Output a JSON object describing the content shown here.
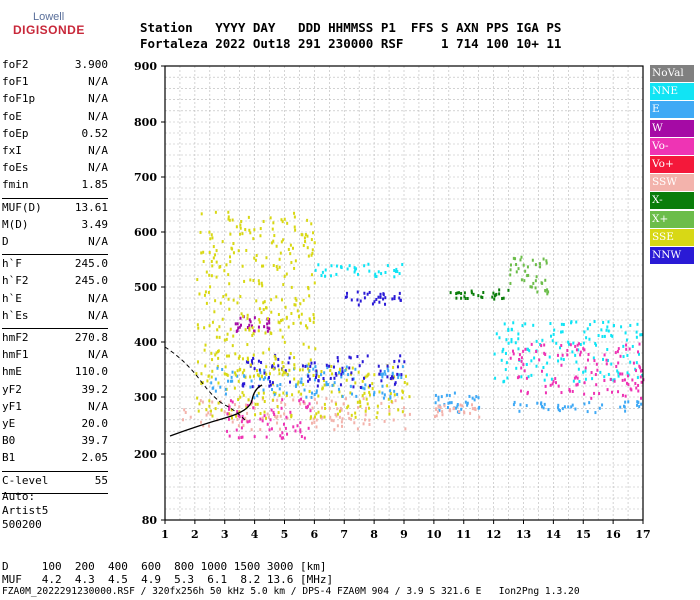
{
  "logo": {
    "top": "Lowell",
    "bottom": "DIGISONDE"
  },
  "header": {
    "line1": "Station   YYYY DAY   DDD HHMMSS P1  FFS S AXN PPS IGA PS",
    "line2": "Fortaleza 2022 Out18 291 230000 RSF     1 714 100 10+ 11"
  },
  "params": [
    [
      {
        "k": "foF2",
        "v": "3.900"
      },
      {
        "k": "foF1",
        "v": "N/A"
      },
      {
        "k": "foF1p",
        "v": "N/A"
      },
      {
        "k": "foE",
        "v": "N/A"
      },
      {
        "k": "foEp",
        "v": "0.52"
      },
      {
        "k": "fxI",
        "v": "N/A"
      },
      {
        "k": "foEs",
        "v": "N/A"
      },
      {
        "k": "fmin",
        "v": "1.85"
      }
    ],
    [
      {
        "k": "MUF(D)",
        "v": "13.61"
      },
      {
        "k": "M(D)",
        "v": "3.49"
      },
      {
        "k": "D",
        "v": "N/A"
      }
    ],
    [
      {
        "k": "h`F",
        "v": "245.0"
      },
      {
        "k": "h`F2",
        "v": "245.0"
      },
      {
        "k": "h`E",
        "v": "N/A"
      },
      {
        "k": "h`Es",
        "v": "N/A"
      }
    ],
    [
      {
        "k": "hmF2",
        "v": "270.8"
      },
      {
        "k": "hmF1",
        "v": "N/A"
      },
      {
        "k": "hmE",
        "v": "110.0"
      },
      {
        "k": "yF2",
        "v": "39.2"
      },
      {
        "k": "yF1",
        "v": "N/A"
      },
      {
        "k": "yE",
        "v": "20.0"
      },
      {
        "k": "B0",
        "v": "39.7"
      },
      {
        "k": "B1",
        "v": "2.05"
      }
    ],
    [
      {
        "k": "C-level",
        "v": "55"
      }
    ]
  ],
  "auto": {
    "label": "Auto:",
    "system": "Artist5",
    "version": "500200"
  },
  "chart_data": {
    "type": "scatter",
    "xlim": [
      1,
      17
    ],
    "ylim": [
      80,
      900
    ],
    "x_ticks": [
      "1",
      "2",
      "3",
      "4",
      "5",
      "6",
      "7",
      "8",
      "9",
      "10",
      "11",
      "12",
      "13",
      "14",
      "15",
      "16",
      "17"
    ],
    "y_ticks": [
      "80",
      "200",
      "300",
      "400",
      "500",
      "600",
      "700",
      "800",
      "900"
    ],
    "grid": true,
    "legend_position": "right",
    "series": [
      {
        "name": "NoVal",
        "color": "#808080"
      },
      {
        "name": "NNE",
        "color": "#11e4f4"
      },
      {
        "name": "E",
        "color": "#3fa9f5"
      },
      {
        "name": "W",
        "color": "#a50aa5"
      },
      {
        "name": "Vo-",
        "color": "#ee34b4"
      },
      {
        "name": "Vo+",
        "color": "#f4183a"
      },
      {
        "name": "SSW",
        "color": "#f3b3ac"
      },
      {
        "name": "X-",
        "color": "#0a7d0a"
      },
      {
        "name": "X+",
        "color": "#6cbd4a"
      },
      {
        "name": "SSE",
        "color": "#d8d815"
      },
      {
        "name": "NNW",
        "color": "#2a1ad6"
      }
    ],
    "traces": [
      {
        "series": "SSW",
        "x_range": [
          1.5,
          9.2
        ],
        "y_range": [
          245,
          300
        ]
      },
      {
        "series": "SSE",
        "x_range": [
          2.0,
          9.2
        ],
        "y_range": [
          265,
          360
        ]
      },
      {
        "series": "E",
        "x_range": [
          2.5,
          9.0
        ],
        "y_range": [
          300,
          360
        ]
      },
      {
        "series": "NNW",
        "x_range": [
          3.5,
          9.0
        ],
        "y_range": [
          320,
          380
        ]
      },
      {
        "series": "NNW",
        "x_range": [
          7.0,
          9.0
        ],
        "y_range": [
          470,
          495
        ]
      },
      {
        "series": "NNE",
        "x_range": [
          6.0,
          9.0
        ],
        "y_range": [
          520,
          545
        ]
      },
      {
        "series": "W",
        "x_range": [
          3.3,
          4.5
        ],
        "y_range": [
          420,
          450
        ]
      },
      {
        "series": "Vo-",
        "x_range": [
          3.0,
          6.0
        ],
        "y_range": [
          230,
          300
        ]
      },
      {
        "series": "SSE",
        "x_range": [
          2.0,
          6.0
        ],
        "y_range": [
          340,
          640
        ]
      },
      {
        "series": "E",
        "x_range": [
          10.0,
          11.5
        ],
        "y_range": [
          275,
          310
        ]
      },
      {
        "series": "SSW",
        "x_range": [
          10.0,
          11.5
        ],
        "y_range": [
          265,
          290
        ]
      },
      {
        "series": "X-",
        "x_range": [
          10.5,
          12.5
        ],
        "y_range": [
          480,
          500
        ]
      },
      {
        "series": "NNE",
        "x_range": [
          12.0,
          17.0
        ],
        "y_range": [
          330,
          440
        ]
      },
      {
        "series": "Vo-",
        "x_range": [
          12.5,
          17.0
        ],
        "y_range": [
          300,
          400
        ]
      },
      {
        "series": "E",
        "x_range": [
          12.5,
          17.0
        ],
        "y_range": [
          275,
          295
        ]
      },
      {
        "series": "X+",
        "x_range": [
          12.5,
          13.8
        ],
        "y_range": [
          490,
          560
        ]
      }
    ]
  },
  "bottom": {
    "d_line": "D     100  200  400  600  800 1000 1500 3000 [km]",
    "muf_line": "MUF   4.2  4.3  4.5  4.9  5.3  6.1  8.2 13.6 [MHz]",
    "footer": "FZA0M_2022291230000.RSF / 320fx256h 50 kHz 5.0 km / DPS-4 FZA0M 904 / 3.9 S 321.6 E   Ion2Png 1.3.20"
  }
}
